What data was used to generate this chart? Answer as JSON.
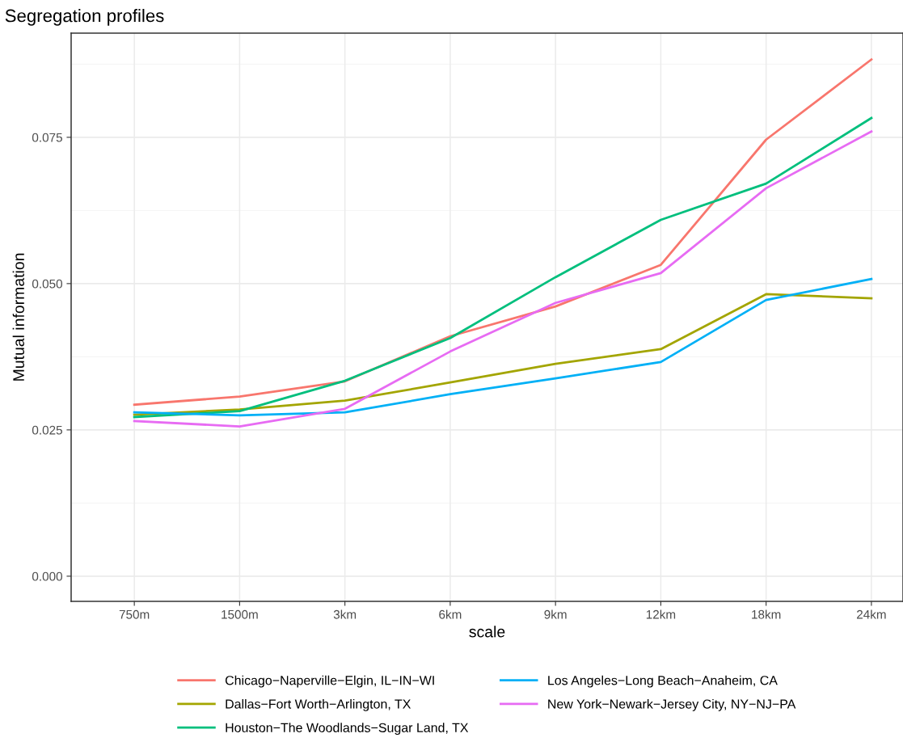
{
  "chart_data": {
    "type": "line",
    "title": "Segregation profiles",
    "xlabel": "scale",
    "ylabel": "Mutual information",
    "categories": [
      "750m",
      "1500m",
      "3km",
      "6km",
      "9km",
      "12km",
      "18km",
      "24km"
    ],
    "series": [
      {
        "name": "Chicago−Naperville−Elgin, IL−IN−WI",
        "color": "#f8766d",
        "values": [
          0.0293,
          0.0307,
          0.0333,
          0.041,
          0.0461,
          0.0532,
          0.0746,
          0.0883
        ]
      },
      {
        "name": "Dallas−Fort Worth−Arlington, TX",
        "color": "#a3a500",
        "values": [
          0.0276,
          0.0285,
          0.03,
          0.0331,
          0.0363,
          0.0388,
          0.0482,
          0.0475
        ]
      },
      {
        "name": "Houston−The Woodlands−Sugar Land, TX",
        "color": "#00bf7d",
        "values": [
          0.0272,
          0.0282,
          0.0334,
          0.0407,
          0.0511,
          0.0609,
          0.0671,
          0.0783
        ]
      },
      {
        "name": "Los Angeles−Long Beach−Anaheim, CA",
        "color": "#00b0f6",
        "values": [
          0.028,
          0.0275,
          0.028,
          0.0311,
          0.0338,
          0.0366,
          0.0472,
          0.0508
        ]
      },
      {
        "name": "New York−Newark−Jersey City, NY−NJ−PA",
        "color": "#e76bf3",
        "values": [
          0.0265,
          0.0256,
          0.0286,
          0.0384,
          0.0467,
          0.0518,
          0.0663,
          0.076
        ]
      }
    ],
    "ylim": [
      -0.0043,
      0.0928
    ],
    "yticks": [
      {
        "value": 0,
        "label": "0.000"
      },
      {
        "value": 0.025,
        "label": "0.025"
      },
      {
        "value": 0.05,
        "label": "0.050"
      },
      {
        "value": 0.075,
        "label": "0.075"
      }
    ],
    "grid": true,
    "legend": "bottom",
    "marker": "none",
    "line_style": "solid"
  }
}
